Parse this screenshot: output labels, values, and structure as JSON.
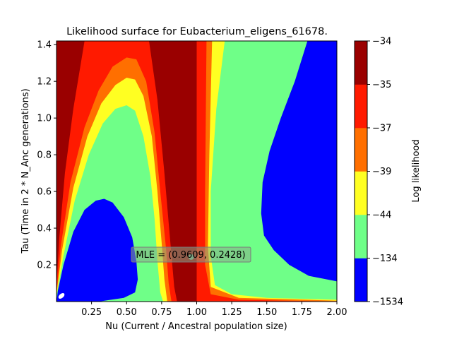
{
  "chart_data": {
    "type": "contour",
    "title": "Likelihood surface for Eubacterium_eligens_61678.",
    "xlabel": "Nu (Current / Ancestral population size)",
    "ylabel": "Tau (Time in 2 * N_Anc generations)",
    "xlim": [
      0.0,
      2.0
    ],
    "ylim": [
      0.0,
      1.42
    ],
    "xticks": [
      0.25,
      0.5,
      0.75,
      1.0,
      1.25,
      1.5,
      1.75,
      2.0
    ],
    "xtick_labels": [
      "0.25",
      "0.50",
      "0.75",
      "1.00",
      "1.25",
      "1.50",
      "1.75",
      "2.00"
    ],
    "yticks": [
      0.2,
      0.4,
      0.6,
      0.8,
      1.0,
      1.2,
      1.4
    ],
    "ytick_labels": [
      "0.2",
      "0.4",
      "0.6",
      "0.8",
      "1.0",
      "1.2",
      "1.4"
    ],
    "colorbar": {
      "label": "Log likelihood",
      "levels": [
        -1534,
        -134,
        -44,
        -39,
        -37,
        -35,
        -34
      ],
      "level_labels": [
        "−1534",
        "−134",
        "−44",
        "−39",
        "−37",
        "−35",
        "−34"
      ],
      "colors": [
        "#0000ff",
        "#6fff88",
        "#ffff22",
        "#ff6f00",
        "#ff1a00",
        "#9a0000"
      ]
    },
    "mle": {
      "nu": 0.9609,
      "tau": 0.2428,
      "label": "MLE = (0.9609, 0.2428)"
    },
    "regions": {
      "left_lobe_curves": [
        {
          "level": "-35",
          "color_index": 4,
          "points": [
            [
              0.0,
              0.08
            ],
            [
              0.02,
              0.35
            ],
            [
              0.06,
              0.7
            ],
            [
              0.12,
              1.05
            ],
            [
              0.2,
              1.42
            ],
            [
              0.66,
              1.42
            ],
            [
              0.72,
              1.1
            ],
            [
              0.77,
              0.7
            ],
            [
              0.82,
              0.25
            ],
            [
              0.84,
              0.08
            ],
            [
              0.86,
              0.0
            ],
            [
              0.02,
              0.0
            ]
          ]
        },
        {
          "level": "-37",
          "color_index": 3,
          "points": [
            [
              0.0,
              0.05
            ],
            [
              0.03,
              0.3
            ],
            [
              0.1,
              0.65
            ],
            [
              0.2,
              0.95
            ],
            [
              0.3,
              1.15
            ],
            [
              0.4,
              1.28
            ],
            [
              0.5,
              1.33
            ],
            [
              0.57,
              1.32
            ],
            [
              0.64,
              1.2
            ],
            [
              0.7,
              0.92
            ],
            [
              0.74,
              0.6
            ],
            [
              0.78,
              0.3
            ],
            [
              0.8,
              0.1
            ],
            [
              0.82,
              0.0
            ],
            [
              0.0,
              0.0
            ]
          ]
        },
        {
          "level": "-39",
          "color_index": 2,
          "points": [
            [
              0.0,
              0.04
            ],
            [
              0.04,
              0.28
            ],
            [
              0.12,
              0.62
            ],
            [
              0.22,
              0.9
            ],
            [
              0.32,
              1.08
            ],
            [
              0.42,
              1.18
            ],
            [
              0.5,
              1.22
            ],
            [
              0.56,
              1.21
            ],
            [
              0.62,
              1.12
            ],
            [
              0.68,
              0.9
            ],
            [
              0.72,
              0.6
            ],
            [
              0.75,
              0.32
            ],
            [
              0.77,
              0.12
            ],
            [
              0.79,
              0.0
            ],
            [
              0.0,
              0.0
            ]
          ]
        },
        {
          "level": "-44",
          "color_index": 1,
          "points": [
            [
              0.0,
              0.03
            ],
            [
              0.05,
              0.25
            ],
            [
              0.13,
              0.55
            ],
            [
              0.23,
              0.8
            ],
            [
              0.33,
              0.97
            ],
            [
              0.42,
              1.05
            ],
            [
              0.5,
              1.07
            ],
            [
              0.56,
              1.04
            ],
            [
              0.62,
              0.9
            ],
            [
              0.67,
              0.68
            ],
            [
              0.7,
              0.45
            ],
            [
              0.72,
              0.22
            ],
            [
              0.74,
              0.05
            ],
            [
              0.76,
              0.0
            ],
            [
              0.0,
              0.0
            ]
          ]
        },
        {
          "level": "-134",
          "color_index": 0,
          "points": [
            [
              0.0,
              0.0
            ],
            [
              0.01,
              0.06
            ],
            [
              0.05,
              0.2
            ],
            [
              0.12,
              0.38
            ],
            [
              0.2,
              0.5
            ],
            [
              0.28,
              0.55
            ],
            [
              0.34,
              0.56
            ],
            [
              0.4,
              0.54
            ],
            [
              0.48,
              0.46
            ],
            [
              0.54,
              0.35
            ],
            [
              0.57,
              0.22
            ],
            [
              0.58,
              0.12
            ],
            [
              0.56,
              0.05
            ],
            [
              0.48,
              0.02
            ],
            [
              0.3,
              0.0
            ],
            [
              0.0,
              0.0
            ]
          ]
        }
      ],
      "right_lobe_curves": [
        {
          "level": "-35",
          "color_index": 4,
          "points": [
            [
              1.0,
              1.42
            ],
            [
              1.0,
              0.0
            ],
            [
              2.0,
              0.0
            ],
            [
              2.0,
              1.42
            ]
          ]
        },
        {
          "level": "-37",
          "color_index": 3,
          "points": [
            [
              1.07,
              1.42
            ],
            [
              1.06,
              0.6
            ],
            [
              1.06,
              0.2
            ],
            [
              1.1,
              0.04
            ],
            [
              1.3,
              0.01
            ],
            [
              2.0,
              0.0
            ],
            [
              2.0,
              1.42
            ]
          ]
        },
        {
          "level": "-39",
          "color_index": 2,
          "points": [
            [
              1.11,
              1.42
            ],
            [
              1.09,
              0.8
            ],
            [
              1.08,
              0.3
            ],
            [
              1.1,
              0.08
            ],
            [
              1.3,
              0.02
            ],
            [
              2.0,
              0.005
            ],
            [
              2.0,
              1.42
            ]
          ]
        },
        {
          "level": "-44",
          "color_index": 1,
          "points": [
            [
              1.2,
              1.42
            ],
            [
              1.14,
              1.05
            ],
            [
              1.1,
              0.6
            ],
            [
              1.1,
              0.25
            ],
            [
              1.13,
              0.09
            ],
            [
              1.25,
              0.04
            ],
            [
              1.5,
              0.02
            ],
            [
              2.0,
              0.01
            ],
            [
              2.0,
              1.42
            ]
          ]
        },
        {
          "level": "-134",
          "color_index": 0,
          "points": [
            [
              1.79,
              1.42
            ],
            [
              1.7,
              1.2
            ],
            [
              1.6,
              1.0
            ],
            [
              1.52,
              0.82
            ],
            [
              1.47,
              0.65
            ],
            [
              1.46,
              0.48
            ],
            [
              1.48,
              0.36
            ],
            [
              1.55,
              0.28
            ],
            [
              1.66,
              0.2
            ],
            [
              1.8,
              0.14
            ],
            [
              2.0,
              0.11
            ],
            [
              2.0,
              1.42
            ]
          ]
        }
      ]
    }
  }
}
